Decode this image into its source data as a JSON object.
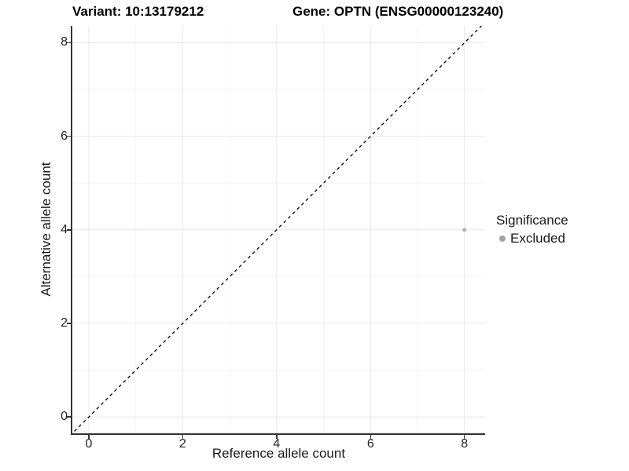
{
  "titles": {
    "variant": "Variant: 10:13179212",
    "gene": "Gene: OPTN (ENSG00000123240)"
  },
  "axes": {
    "x": {
      "label": "Reference allele count",
      "ticks": [
        "0",
        "2",
        "4",
        "6",
        "8"
      ]
    },
    "y": {
      "label": "Alternative allele count",
      "ticks": [
        "0",
        "2",
        "4",
        "6",
        "8"
      ]
    }
  },
  "legend": {
    "title": "Significance",
    "items": [
      {
        "label": "Excluded",
        "color": "#a3a3a3"
      }
    ]
  },
  "chart_data": {
    "type": "scatter",
    "titles": [
      "Variant: 10:13179212",
      "Gene: OPTN (ENSG00000123240)"
    ],
    "xlabel": "Reference allele count",
    "ylabel": "Alternative allele count",
    "xlim": [
      -0.35,
      8.44
    ],
    "ylim": [
      -0.35,
      8.36
    ],
    "x_ticks": [
      0,
      2,
      4,
      6,
      8
    ],
    "y_ticks": [
      0,
      2,
      4,
      6,
      8
    ],
    "grid": "on",
    "legend_position": "right",
    "reference_line": {
      "kind": "identity",
      "equation": "y = x",
      "style": "dashed",
      "color": "#000000"
    },
    "series": [
      {
        "name": "Excluded",
        "color": "#b5b5b5",
        "points": [
          {
            "x": 8,
            "y": 4
          }
        ]
      }
    ]
  },
  "colors": {
    "background": "#ffffff",
    "axis_line": "#333333",
    "grid_major": "#e8e8e8",
    "grid_minor": "#f4f4f4",
    "text": "#1a1a1a",
    "point": "#b5b5b5"
  }
}
